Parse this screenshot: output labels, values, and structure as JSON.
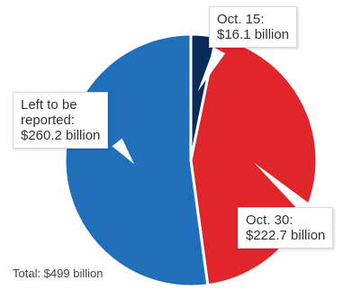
{
  "chart_data": {
    "type": "pie",
    "slices": [
      {
        "label": "Oct. 15:",
        "value_label": "$16.1 billion",
        "value": 16.1,
        "color": "#0b2a5c"
      },
      {
        "label": "Oct. 30:",
        "value_label": "$222.7 billion",
        "value": 222.7,
        "color": "#e0252b"
      },
      {
        "label": "Left to be reported:",
        "value_label": "$260.2 billion",
        "value": 260.2,
        "color": "#1f6fba"
      }
    ],
    "total_label": "Total: $499 billion"
  },
  "callouts": {
    "oct15": {
      "line1": "Oct. 15:",
      "line2": "$16.1 billion"
    },
    "left": {
      "line1": "Left to be",
      "line2": "reported:",
      "line3": "$260.2 billion"
    },
    "oct30": {
      "line1": "Oct. 30:",
      "line2": "$222.7 billion"
    }
  }
}
